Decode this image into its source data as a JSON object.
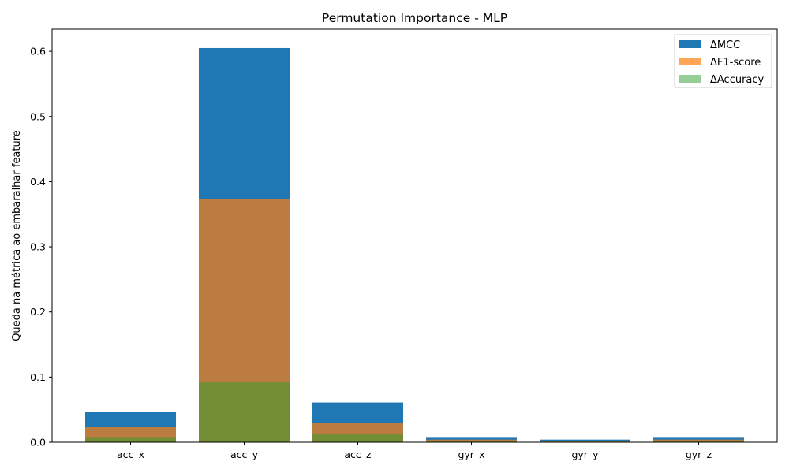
{
  "chart_data": {
    "type": "bar",
    "title": "Permutation Importance - MLP",
    "xlabel": "",
    "ylabel": "Queda na métrica ao embaralhar feature",
    "categories": [
      "acc_x",
      "acc_y",
      "acc_z",
      "gyr_x",
      "gyr_y",
      "gyr_z"
    ],
    "ylim": [
      0,
      0.634
    ],
    "yticks": [
      "0.0",
      "0.1",
      "0.2",
      "0.3",
      "0.4",
      "0.5",
      "0.6"
    ],
    "grid": false,
    "legend_position": "top-right",
    "overlay": true,
    "series": [
      {
        "name": "ΔMCC",
        "color": "#1f77b4",
        "opacity": 1.0,
        "values": [
          0.046,
          0.605,
          0.061,
          0.008,
          0.004,
          0.008
        ]
      },
      {
        "name": "ΔF1-score",
        "color": "#ff7f0e",
        "opacity": 0.7,
        "values": [
          0.023,
          0.373,
          0.03,
          0.004,
          0.002,
          0.004
        ]
      },
      {
        "name": "ΔAccuracy",
        "color": "#2ca02c",
        "opacity": 0.5,
        "values": [
          0.008,
          0.093,
          0.012,
          0.002,
          0.001,
          0.002
        ]
      }
    ]
  }
}
